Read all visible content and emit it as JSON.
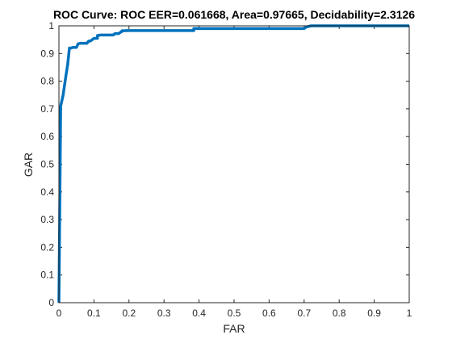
{
  "chart_data": {
    "type": "line",
    "title": "ROC Curve: ROC   EER=0.061668,   Area=0.97665,   Decidability=2.3126",
    "xlabel": "FAR",
    "ylabel": "GAR",
    "xlim": [
      0,
      1
    ],
    "ylim": [
      0,
      1
    ],
    "xticks": [
      0,
      0.1,
      0.2,
      0.3,
      0.4,
      0.5,
      0.6,
      0.7,
      0.8,
      0.9,
      1
    ],
    "yticks": [
      0,
      0.1,
      0.2,
      0.3,
      0.4,
      0.5,
      0.6,
      0.7,
      0.8,
      0.9,
      1
    ],
    "xtick_labels": [
      "0",
      "0.1",
      "0.2",
      "0.3",
      "0.4",
      "0.5",
      "0.6",
      "0.7",
      "0.8",
      "0.9",
      "1"
    ],
    "ytick_labels": [
      "0",
      "0.1",
      "0.2",
      "0.3",
      "0.4",
      "0.5",
      "0.6",
      "0.7",
      "0.8",
      "0.9",
      "1"
    ],
    "grid": false,
    "line_color": "#0072BD",
    "series": [
      {
        "x": [
          0,
          0.005,
          0.012,
          0.02,
          0.025,
          0.03,
          0.035,
          0.04,
          0.045,
          0.05,
          0.055,
          0.06,
          0.07,
          0.08,
          0.085,
          0.09,
          0.1,
          0.11,
          0.11,
          0.115,
          0.12,
          0.155,
          0.16,
          0.17,
          0.18,
          0.18,
          0.2,
          0.22,
          0.3,
          0.37,
          0.385,
          0.385,
          0.39,
          0.6,
          0.7,
          0.705,
          0.71,
          0.72,
          0.8,
          0.9,
          1.0
        ],
        "y": [
          0,
          0.71,
          0.75,
          0.82,
          0.86,
          0.92,
          0.92,
          0.922,
          0.922,
          0.922,
          0.935,
          0.937,
          0.937,
          0.937,
          0.945,
          0.945,
          0.955,
          0.955,
          0.965,
          0.966,
          0.967,
          0.967,
          0.972,
          0.972,
          0.98,
          0.982,
          0.983,
          0.983,
          0.983,
          0.983,
          0.983,
          0.99,
          0.99,
          0.99,
          0.99,
          0.995,
          0.997,
          1.0,
          1.0,
          1.0,
          1.0
        ]
      }
    ]
  }
}
